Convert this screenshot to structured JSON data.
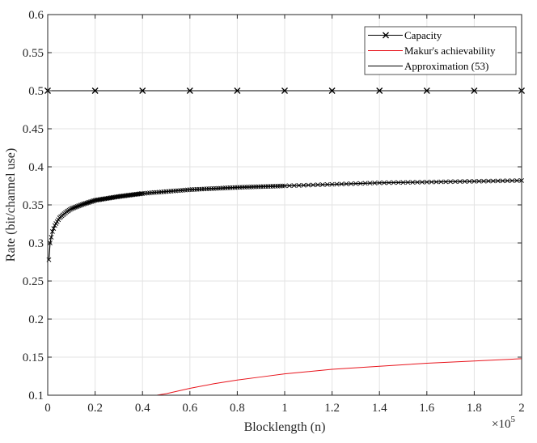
{
  "chart_data": {
    "type": "line",
    "xlabel": "Blocklength (n)",
    "ylabel": "Rate (bit/channel use)",
    "x_exponent_label": "×10",
    "x_exponent_power": "5",
    "xlim": [
      0,
      200000
    ],
    "ylim": [
      0.1,
      0.6
    ],
    "grid": true,
    "legend_placement": "top-right",
    "x_ticks": [
      0,
      20000,
      40000,
      60000,
      80000,
      100000,
      120000,
      140000,
      160000,
      180000,
      200000
    ],
    "x_tick_labels": [
      "0",
      "0.2",
      "0.4",
      "0.6",
      "0.8",
      "1",
      "1.2",
      "1.4",
      "1.6",
      "1.8",
      "2"
    ],
    "y_ticks": [
      0.1,
      0.15,
      0.2,
      0.25,
      0.3,
      0.35,
      0.4,
      0.45,
      0.5,
      0.55,
      0.6
    ],
    "y_tick_labels": [
      "0.1",
      "0.15",
      "0.2",
      "0.25",
      "0.3",
      "0.35",
      "0.4",
      "0.45",
      "0.5",
      "0.55",
      "0.6"
    ],
    "series": [
      {
        "name": "Capacity",
        "color": "#000000",
        "marker": "x",
        "x": [
          0,
          20000,
          40000,
          60000,
          80000,
          100000,
          120000,
          140000,
          160000,
          180000,
          200000
        ],
        "y": [
          0.5,
          0.5,
          0.5,
          0.5,
          0.5,
          0.5,
          0.5,
          0.5,
          0.5,
          0.5,
          0.5
        ]
      },
      {
        "name": "Makur's achievability",
        "color": "#e8141c",
        "marker": "none",
        "x": [
          46000,
          50000,
          60000,
          70000,
          80000,
          90000,
          100000,
          120000,
          140000,
          160000,
          180000,
          200000
        ],
        "y": [
          0.1,
          0.102,
          0.109,
          0.115,
          0.12,
          0.124,
          0.128,
          0.134,
          0.138,
          0.142,
          0.145,
          0.148
        ]
      },
      {
        "name": "Approximation (53)",
        "color": "#000000",
        "marker": "none",
        "x": [
          500,
          1000,
          2000,
          3000,
          5000,
          8000,
          10000,
          15000,
          20000,
          30000,
          40000,
          60000,
          80000,
          100000,
          120000,
          140000,
          160000,
          180000,
          200000
        ],
        "y": [
          0.278,
          0.3,
          0.315,
          0.323,
          0.333,
          0.341,
          0.345,
          0.351,
          0.356,
          0.361,
          0.365,
          0.37,
          0.373,
          0.375,
          0.377,
          0.379,
          0.38,
          0.381,
          0.382
        ]
      }
    ]
  }
}
